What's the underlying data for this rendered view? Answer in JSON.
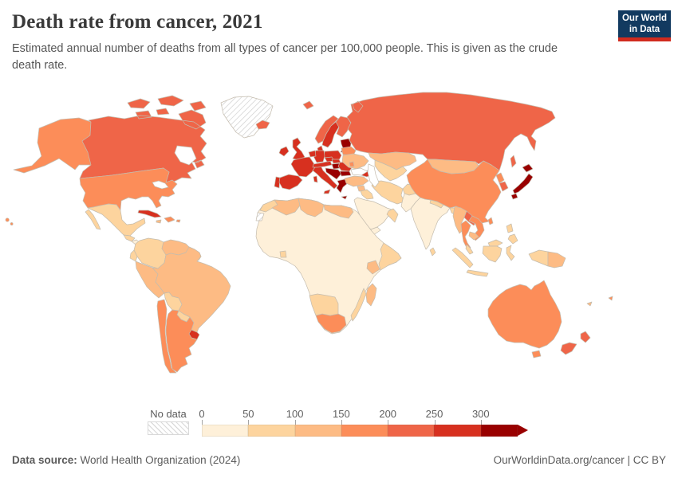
{
  "header": {
    "title": "Death rate from cancer, 2021",
    "subtitle": "Estimated annual number of deaths from all types of cancer per 100,000 people. This is given as the crude death rate.",
    "logo": {
      "line1": "Our World",
      "line2": "in Data",
      "bg_color": "#123a60",
      "accent_color": "#d12b1e",
      "text_color": "#ffffff"
    }
  },
  "legend": {
    "no_data_label": "No data",
    "tick_labels": [
      "0",
      "50",
      "100",
      "150",
      "200",
      "250",
      "300"
    ],
    "colors": [
      "#fef0d9",
      "#fdd49e",
      "#fdbb84",
      "#fc8d59",
      "#ef6548",
      "#d7301f",
      "#990000"
    ],
    "tick_color": "#a5a5a5",
    "label_color": "#606060"
  },
  "footer": {
    "source_label": "Data source:",
    "source_text": " World Health Organization (2024)",
    "right_text": "OurWorldinData.org/cancer | CC BY"
  },
  "map": {
    "border_color": "#c4bcae",
    "water_color": "#ffffff",
    "regions": {
      "usa": 3,
      "canada": 4,
      "greenland": "nodata",
      "mexico": 1,
      "guatemala": 1,
      "nicaragua": 0,
      "panama-costa-rica": 1,
      "cuba": 5,
      "jamaica": 2,
      "hispaniola": 3,
      "colombia": 1,
      "venezuela": 2,
      "guyanas": 2,
      "french-guiana": "nodata",
      "ecuador": 1,
      "peru": 2,
      "brazil": 2,
      "bolivia": 1,
      "paraguay": 1,
      "uruguay": 5,
      "argentina": 3,
      "chile": 3,
      "iceland": 4,
      "ireland": 5,
      "uk": 5,
      "norway": 4,
      "sweden": 5,
      "finland": 4,
      "denmark": 5,
      "baltics": 6,
      "poland": 5,
      "germany": 5,
      "benelux": 5,
      "france": 5,
      "portugal": 5,
      "spain": 5,
      "italy": 5,
      "alpine": 5,
      "czechia": 5,
      "slovakia": 5,
      "hungary": 6,
      "romania": 5,
      "balkans-dark": 6,
      "greece": 6,
      "bulgaria": 6,
      "belarus": 3,
      "ukraine": 2,
      "moldova": 3,
      "russia": 4,
      "kazakhstan": 2,
      "central-asia": 1,
      "caucasus": 5,
      "turkey": 2,
      "syria": 2,
      "iraq": 1,
      "iran": 1,
      "saudi-arabia": 0,
      "yemen": 0,
      "oman": 1,
      "afghanistan": 1,
      "pakistan": 0,
      "india": 0,
      "nepal": 1,
      "bangladesh": 1,
      "sri-lanka": 1,
      "china": 3,
      "mongolia": 2,
      "north-korea": 3,
      "south-korea": 4,
      "japan": 6,
      "taiwan": 3,
      "myanmar": 2,
      "thailand": 3,
      "laos": 4,
      "vietnam": 3,
      "cambodia": 2,
      "malaysia": 1,
      "indonesia": 1,
      "papua-new-guinea": 2,
      "philippines": 1,
      "australia": 3,
      "new-zealand": 4,
      "new-caledonia": 2,
      "fiji": 3,
      "africa-base": 0,
      "morocco": 1,
      "western-sahara": "nodata",
      "algeria": 2,
      "libya": 2,
      "egypt": 2,
      "ghana": 1,
      "kenya": 2,
      "somalia": 1,
      "madagascar": 2,
      "south-africa": 3,
      "namibia-botswana": 1,
      "mozambique": 1
    }
  },
  "chart_data": {
    "type": "heatmap",
    "subtype": "world-choropleth",
    "title": "Death rate from cancer, 2021",
    "unit": "deaths per 100,000 people (crude death rate)",
    "legend_position": "bottom",
    "bins": [
      {
        "range": "0-50",
        "color": "#fef0d9"
      },
      {
        "range": "50-100",
        "color": "#fdd49e"
      },
      {
        "range": "100-150",
        "color": "#fdbb84"
      },
      {
        "range": "150-200",
        "color": "#fc8d59"
      },
      {
        "range": "200-250",
        "color": "#ef6548"
      },
      {
        "range": "250-300",
        "color": "#d7301f"
      },
      {
        "range": "300+",
        "color": "#990000"
      },
      {
        "range": "No data",
        "color": "diagonal-hatch"
      }
    ],
    "regions_by_bin": {
      "0-50": [
        "India",
        "Pakistan",
        "Saudi Arabia",
        "Yemen",
        "Nicaragua",
        "Most of Sub-Saharan Africa"
      ],
      "50-100": [
        "Mexico",
        "Guatemala",
        "Panama",
        "Colombia",
        "Ecuador",
        "Bolivia",
        "Paraguay",
        "Morocco",
        "Iraq",
        "Iran",
        "Oman",
        "Afghanistan",
        "Nepal",
        "Bangladesh",
        "Sri Lanka",
        "Central Asia",
        "Malaysia",
        "Indonesia",
        "Philippines",
        "Namibia",
        "Botswana",
        "Mozambique",
        "Ghana"
      ],
      "100-150": [
        "Venezuela",
        "Peru",
        "Brazil",
        "Guyana",
        "Jamaica",
        "Algeria",
        "Libya",
        "Egypt",
        "Kenya",
        "Madagascar",
        "Ukraine",
        "Turkey",
        "Syria",
        "Kazakhstan",
        "Mongolia",
        "Myanmar",
        "Cambodia",
        "Papua New Guinea",
        "New Caledonia"
      ],
      "150-200": [
        "United States",
        "Argentina",
        "Chile",
        "Haiti",
        "Dominican Republic",
        "Belarus",
        "Moldova",
        "China",
        "North Korea",
        "Thailand",
        "Vietnam",
        "Taiwan",
        "South Africa",
        "Australia",
        "Fiji"
      ],
      "200-250": [
        "Canada",
        "Russia",
        "Iceland",
        "Norway",
        "Finland",
        "South Korea",
        "Laos",
        "New Zealand"
      ],
      "250-300": [
        "Cuba",
        "Uruguay",
        "United Kingdom",
        "Ireland",
        "France",
        "Germany",
        "Spain",
        "Portugal",
        "Italy",
        "Sweden",
        "Denmark",
        "Poland",
        "Czechia",
        "Slovakia",
        "Austria",
        "Switzerland",
        "Romania",
        "Georgia",
        "Armenia"
      ],
      "300+": [
        "Japan",
        "Hungary",
        "Croatia",
        "Serbia",
        "Bosnia and Herzegovina",
        "Slovenia",
        "Greece",
        "Bulgaria",
        "Latvia",
        "Lithuania",
        "Estonia"
      ],
      "No data": [
        "Greenland",
        "Western Sahara",
        "French Guiana"
      ]
    }
  }
}
